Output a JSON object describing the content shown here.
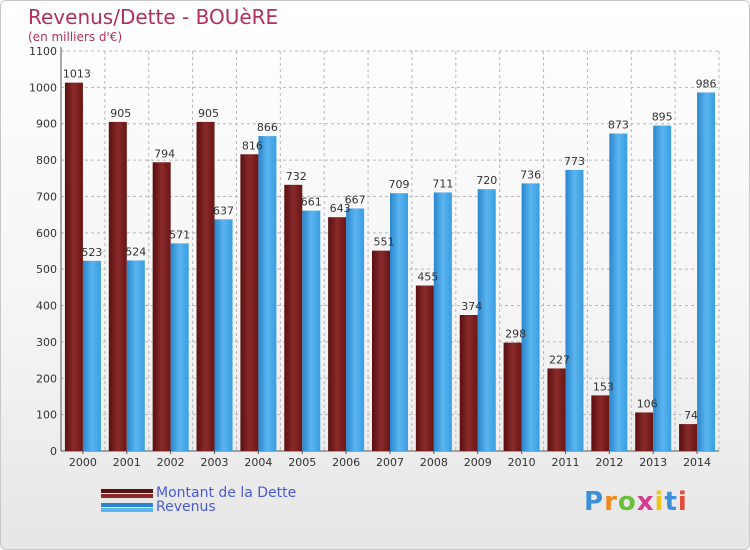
{
  "colors": {
    "dette": "#7a1a1a",
    "revenus": "#3a9ee0",
    "title": "#b0305a",
    "legend_text": "#4a5bd4"
  },
  "logo": {
    "text": "Proxiti",
    "letter_colors": [
      "#3d8fd6",
      "#f08a1c",
      "#6abf3a",
      "#d63b8f",
      "#f0c419",
      "#3d8fd6",
      "#e04a3a"
    ]
  },
  "chart_data": {
    "type": "bar",
    "title": "Revenus/Dette - BOUèRE",
    "subtitle": "(en milliers d'€)",
    "xlabel": "",
    "ylabel": "",
    "ylim": [
      0,
      1100
    ],
    "yticks": [
      "0",
      "100",
      "200",
      "300",
      "400",
      "500",
      "600",
      "700",
      "800",
      "900",
      "1000",
      "1100"
    ],
    "grid": true,
    "legend_position": "bottom-left",
    "categories": [
      "2000",
      "2001",
      "2002",
      "2003",
      "2004",
      "2005",
      "2006",
      "2007",
      "2008",
      "2009",
      "2010",
      "2011",
      "2012",
      "2013",
      "2014"
    ],
    "series": [
      {
        "name": "Montant de la Dette",
        "values": [
          1013,
          905,
          794,
          905,
          816,
          732,
          643,
          551,
          455,
          374,
          298,
          227,
          153,
          106,
          74
        ]
      },
      {
        "name": "Revenus",
        "values": [
          523,
          524,
          571,
          637,
          866,
          661,
          667,
          709,
          711,
          720,
          736,
          773,
          873,
          895,
          986
        ]
      }
    ]
  }
}
